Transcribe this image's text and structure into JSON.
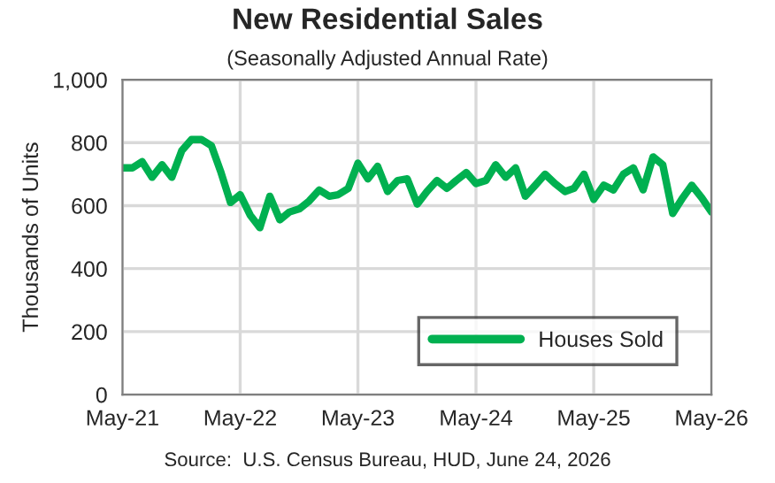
{
  "chart_data": {
    "type": "line",
    "title": "New Residential Sales",
    "subtitle": "(Seasonally Adjusted Annual Rate)",
    "ylabel": "Thousands of Units",
    "annotations": [
      "Source:  U.S. Census Bureau, HUD, June 24, 2026"
    ],
    "x": [
      "2021-05",
      "2021-06",
      "2021-07",
      "2021-08",
      "2021-09",
      "2021-10",
      "2021-11",
      "2021-12",
      "2022-01",
      "2022-02",
      "2022-03",
      "2022-04",
      "2022-05",
      "2022-06",
      "2022-07",
      "2022-08",
      "2022-09",
      "2022-10",
      "2022-11",
      "2022-12",
      "2023-01",
      "2023-02",
      "2023-03",
      "2023-04",
      "2023-05",
      "2023-06",
      "2023-07",
      "2023-08",
      "2023-09",
      "2023-10",
      "2023-11",
      "2023-12",
      "2024-01",
      "2024-02",
      "2024-03",
      "2024-04",
      "2024-05",
      "2024-06",
      "2024-07",
      "2024-08",
      "2024-09",
      "2024-10",
      "2024-11",
      "2024-12",
      "2025-01",
      "2025-02",
      "2025-03",
      "2025-04",
      "2025-05",
      "2025-06",
      "2025-07",
      "2025-08",
      "2025-09",
      "2025-10",
      "2025-11",
      "2025-12",
      "2026-01",
      "2026-02",
      "2026-03",
      "2026-04",
      "2026-05"
    ],
    "series": [
      {
        "name": "Houses Sold",
        "color": "#00b050",
        "values": [
          720,
          720,
          740,
          690,
          730,
          690,
          775,
          810,
          810,
          790,
          710,
          610,
          635,
          570,
          530,
          630,
          555,
          580,
          590,
          615,
          650,
          630,
          635,
          655,
          735,
          685,
          725,
          645,
          680,
          685,
          605,
          645,
          680,
          655,
          680,
          705,
          670,
          680,
          730,
          690,
          720,
          630,
          665,
          700,
          670,
          645,
          655,
          700,
          620,
          665,
          650,
          700,
          720,
          650,
          755,
          730,
          575,
          625,
          665,
          625,
          580
        ]
      }
    ],
    "xlim": [
      "2021-05",
      "2026-05"
    ],
    "xticks": [
      {
        "value": "2021-05",
        "label": "May-21"
      },
      {
        "value": "2022-05",
        "label": "May-22"
      },
      {
        "value": "2023-05",
        "label": "May-23"
      },
      {
        "value": "2024-05",
        "label": "May-24"
      },
      {
        "value": "2025-05",
        "label": "May-25"
      },
      {
        "value": "2026-05",
        "label": "May-26"
      }
    ],
    "ylim": [
      0,
      1000
    ],
    "yticks": [
      0,
      200,
      400,
      600,
      800,
      {
        "value": 1000,
        "label": "1,000"
      }
    ],
    "grid": true,
    "legend": "bottom right",
    "marker": "none",
    "line_style": "solid"
  }
}
